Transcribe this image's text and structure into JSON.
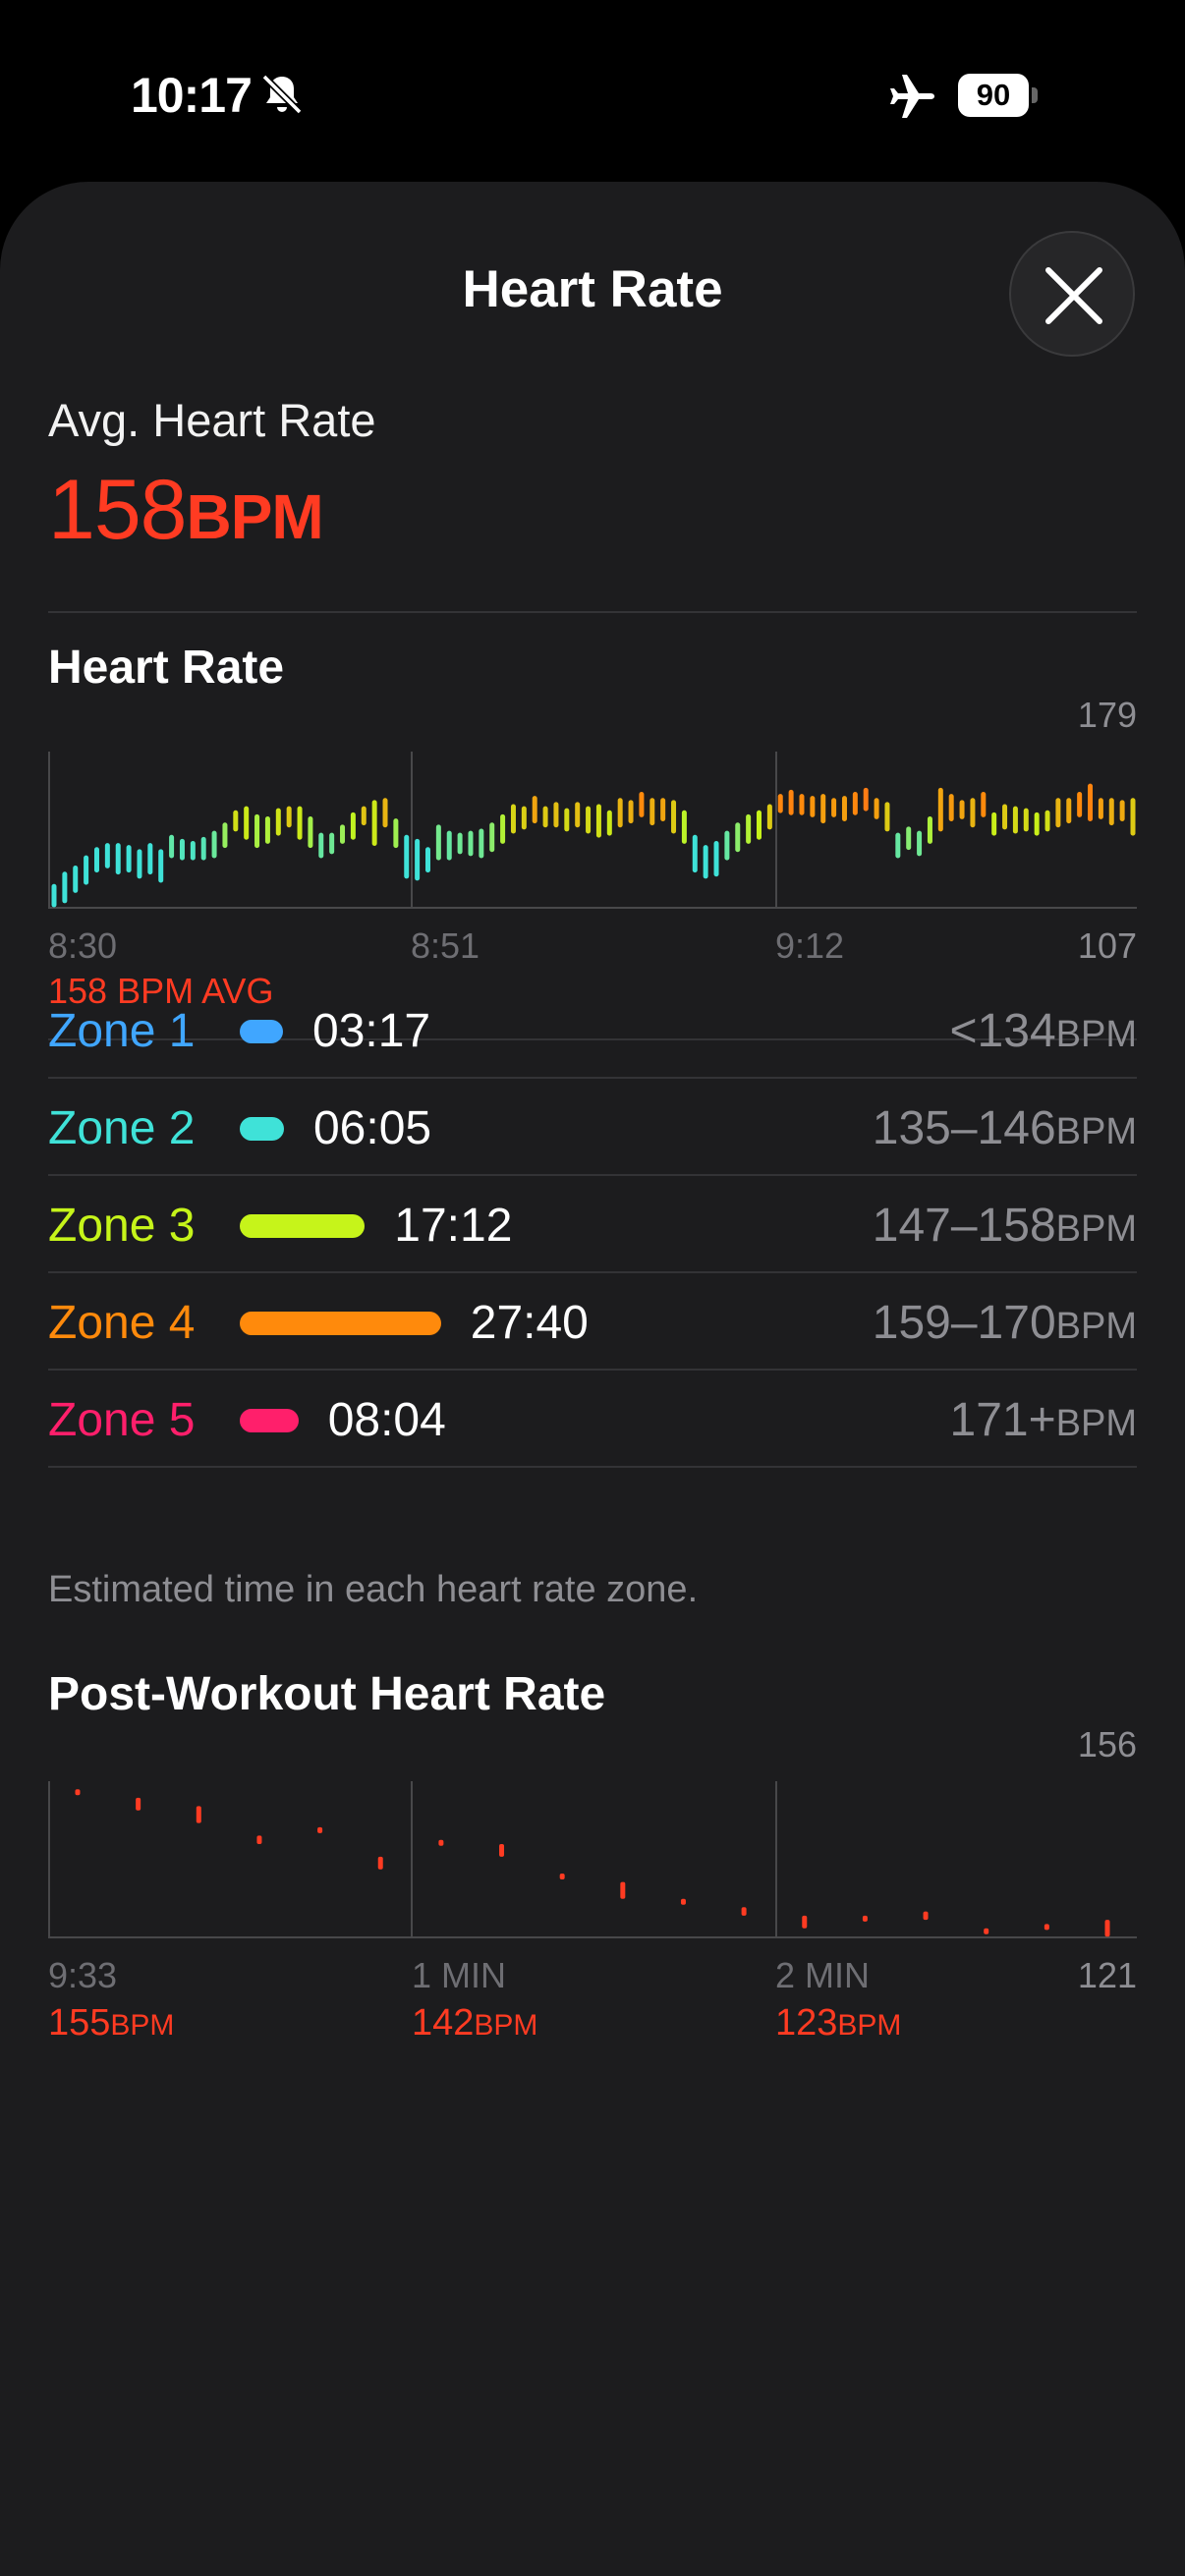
{
  "status_bar": {
    "time": "10:17",
    "battery": "90",
    "icons": [
      "bell-slash-icon",
      "airplane-icon",
      "battery-icon"
    ]
  },
  "header": {
    "title": "Heart Rate",
    "close_icon": "close-icon"
  },
  "summary": {
    "avg_label": "Avg. Heart Rate",
    "avg_value": "158",
    "avg_unit": "BPM"
  },
  "hr_chart": {
    "title": "Heart Rate",
    "y_max_label": "179",
    "y_min_label": "107",
    "x_labels": [
      "8:30",
      "8:51",
      "9:12"
    ],
    "avg_text": "158 BPM AVG"
  },
  "zones": {
    "items": [
      {
        "name": "Zone 1",
        "time": "03:17",
        "range": "<134",
        "unit": "BPM",
        "color": "#40a6ff",
        "minutes": 3.28
      },
      {
        "name": "Zone 2",
        "time": "06:05",
        "range": "135–146",
        "unit": "BPM",
        "color": "#3fe2d8",
        "minutes": 6.08
      },
      {
        "name": "Zone 3",
        "time": "17:12",
        "range": "147–158",
        "unit": "BPM",
        "color": "#c6f41a",
        "minutes": 17.2
      },
      {
        "name": "Zone 4",
        "time": "27:40",
        "range": "159–170",
        "unit": "BPM",
        "color": "#ff8a0c",
        "minutes": 27.67
      },
      {
        "name": "Zone 5",
        "time": "08:04",
        "range": "171+",
        "unit": "BPM",
        "color": "#ff1f6b",
        "minutes": 8.07
      }
    ],
    "footnote": "Estimated time in each heart rate zone."
  },
  "post_workout": {
    "title": "Post-Workout Heart Rate",
    "y_max_label": "156",
    "y_min_label": "121",
    "x_labels": [
      "9:33",
      "1 MIN",
      "2 MIN"
    ],
    "bpm_labels": [
      {
        "value": "155",
        "unit": "BPM"
      },
      {
        "value": "142",
        "unit": "BPM"
      },
      {
        "value": "123",
        "unit": "BPM"
      }
    ]
  },
  "chart_data": [
    {
      "type": "bar",
      "title": "Heart Rate",
      "ylim": [
        107,
        179
      ],
      "x_ticks": [
        "8:30",
        "8:51",
        "9:12"
      ],
      "color_scale": "heart-rate zones",
      "series": [
        {
          "ranges": [
            [
              107,
              116
            ],
            [
              109,
              122
            ],
            [
              114,
              125
            ],
            [
              118,
              130
            ],
            [
              124,
              134
            ],
            [
              126,
              136
            ],
            [
              123,
              136
            ],
            [
              124,
              135
            ],
            [
              121,
              133
            ],
            [
              123,
              136
            ],
            [
              119,
              133
            ],
            [
              131,
              140
            ],
            [
              130,
              138
            ],
            [
              130,
              137
            ],
            [
              130,
              139
            ],
            [
              131,
              142
            ],
            [
              136,
              146
            ],
            [
              144,
              152
            ],
            [
              140,
              154
            ],
            [
              136,
              150
            ],
            [
              138,
              149
            ],
            [
              142,
              153
            ],
            [
              146,
              154
            ],
            [
              140,
              154
            ],
            [
              136,
              149
            ],
            [
              131,
              141
            ],
            [
              133,
              141
            ],
            [
              138,
              145
            ],
            [
              140,
              151
            ],
            [
              147,
              154
            ],
            [
              137,
              157
            ],
            [
              146,
              158
            ],
            [
              136,
              148
            ],
            [
              121,
              140
            ],
            [
              120,
              138
            ],
            [
              124,
              134
            ],
            [
              130,
              145
            ],
            [
              130,
              142
            ],
            [
              133,
              141
            ],
            [
              132,
              142
            ],
            [
              131,
              143
            ],
            [
              134,
              146
            ],
            [
              138,
              150
            ],
            [
              143,
              155
            ],
            [
              145,
              154
            ],
            [
              148,
              159
            ],
            [
              146,
              154
            ],
            [
              146,
              156
            ],
            [
              144,
              153
            ],
            [
              146,
              156
            ],
            [
              143,
              154
            ],
            [
              141,
              155
            ],
            [
              142,
              152
            ],
            [
              146,
              158
            ],
            [
              148,
              157
            ],
            [
              151,
              161
            ],
            [
              147,
              158
            ],
            [
              149,
              158
            ],
            [
              143,
              157
            ],
            [
              138,
              152
            ],
            [
              124,
              140
            ],
            [
              121,
              135
            ],
            [
              122,
              137
            ],
            [
              130,
              142
            ],
            [
              134,
              146
            ],
            [
              138,
              150
            ],
            [
              140,
              152
            ],
            [
              145,
              155
            ],
            [
              153,
              160
            ],
            [
              152,
              162
            ],
            [
              152,
              160
            ],
            [
              151,
              159
            ],
            [
              148,
              160
            ],
            [
              151,
              158
            ],
            [
              149,
              159
            ],
            [
              152,
              161
            ],
            [
              154,
              163
            ],
            [
              150,
              158
            ],
            [
              144,
              156
            ],
            [
              131,
              141
            ],
            [
              135,
              144
            ],
            [
              132,
              142
            ],
            [
              138,
              149
            ],
            [
              144,
              163
            ],
            [
              149,
              160
            ],
            [
              150,
              157
            ],
            [
              146,
              158
            ],
            [
              151,
              161
            ],
            [
              142,
              151
            ],
            [
              145,
              155
            ],
            [
              143,
              154
            ],
            [
              144,
              153
            ],
            [
              142,
              151
            ],
            [
              144,
              152
            ],
            [
              146,
              158
            ],
            [
              148,
              158
            ],
            [
              151,
              161
            ],
            [
              149,
              165
            ],
            [
              150,
              158
            ],
            [
              147,
              158
            ],
            [
              149,
              157
            ],
            [
              142,
              158
            ]
          ]
        }
      ]
    },
    {
      "type": "scatter",
      "title": "Post-Workout Heart Rate",
      "ylim": [
        121,
        156
      ],
      "x_ticks": [
        "9:33",
        "1 MIN",
        "2 MIN"
      ],
      "series": [
        {
          "color": "#ff3b22",
          "ranges": [
            [
              154,
              155
            ],
            [
              150,
              153
            ],
            [
              147,
              151
            ],
            [
              142,
              144
            ],
            [
              145,
              146
            ],
            [
              136,
              139
            ],
            [
              142,
              143
            ],
            [
              139,
              142
            ],
            [
              134,
              135
            ],
            [
              129,
              133
            ],
            [
              128,
              129
            ],
            [
              125,
              127
            ],
            [
              122,
              125
            ],
            [
              124,
              125
            ],
            [
              124,
              126
            ],
            [
              121,
              122
            ],
            [
              122,
              123
            ],
            [
              120,
              124
            ]
          ]
        }
      ]
    }
  ]
}
